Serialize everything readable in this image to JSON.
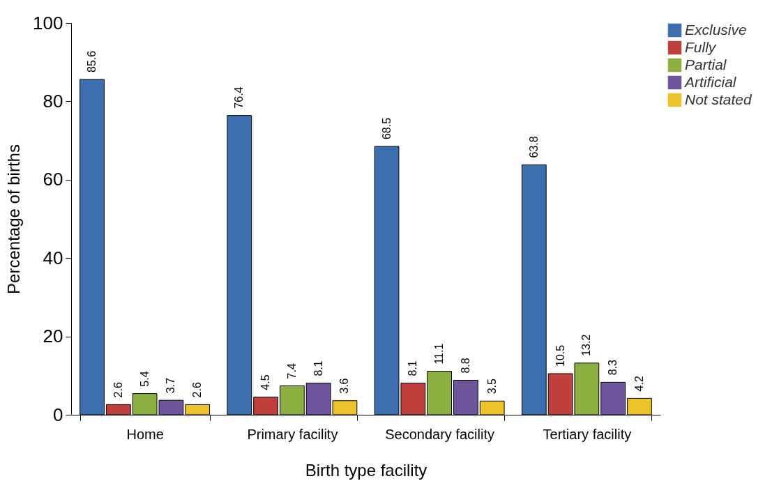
{
  "chart_data": {
    "type": "bar",
    "xlabel": "Birth type facility",
    "ylabel": "Percentage of births",
    "categories": [
      "Home",
      "Primary facility",
      "Secondary facility",
      "Tertiary facility"
    ],
    "series": [
      {
        "name": "Exclusive",
        "color": "#3d6fb0",
        "values": [
          85.6,
          76.4,
          68.5,
          63.8
        ]
      },
      {
        "name": "Fully",
        "color": "#c0403d",
        "values": [
          2.6,
          4.5,
          8.1,
          10.5
        ]
      },
      {
        "name": "Partial",
        "color": "#8db042",
        "values": [
          5.4,
          7.4,
          11.1,
          13.2
        ]
      },
      {
        "name": "Artificial",
        "color": "#6e559c",
        "values": [
          3.7,
          8.1,
          8.8,
          8.3
        ]
      },
      {
        "name": "Not stated",
        "color": "#eac42a",
        "values": [
          2.6,
          3.6,
          3.5,
          4.2
        ]
      }
    ],
    "ylim": [
      0,
      100
    ],
    "yticks": [
      0,
      20,
      40,
      60,
      80,
      100
    ],
    "grid": false,
    "legend": "top right",
    "data_labels": true
  }
}
